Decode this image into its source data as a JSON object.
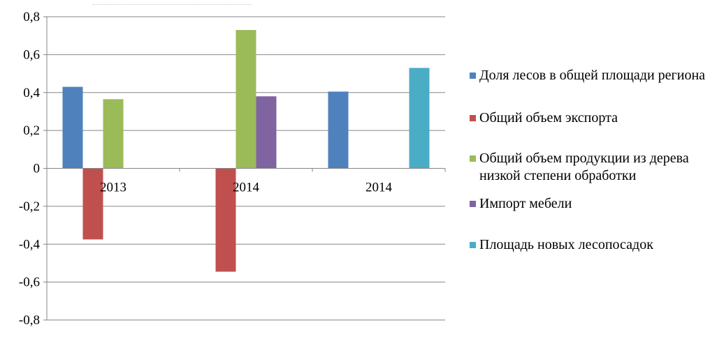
{
  "chart_data": {
    "type": "bar",
    "categories": [
      "2013",
      "2014",
      "2014"
    ],
    "series": [
      {
        "name": "Доля лесов в общей площади региона",
        "color": "#4F81BD",
        "values": [
          0.43,
          null,
          0.405
        ]
      },
      {
        "name": "Общий объем экспорта",
        "color": "#C0504D",
        "values": [
          -0.375,
          -0.545,
          null
        ]
      },
      {
        "name": "Общий объем продукции из дерева низкой степени обработки",
        "color": "#9BBB59",
        "values": [
          0.365,
          0.73,
          null
        ]
      },
      {
        "name": "Импорт мебели",
        "color": "#8064A2",
        "values": [
          null,
          0.38,
          null
        ]
      },
      {
        "name": "Площадь новых лесопосадок",
        "color": "#4BACC6",
        "values": [
          null,
          null,
          0.53
        ]
      }
    ],
    "y_ticks": [
      "0,8",
      "0,6",
      "0,4",
      "0,2",
      "0",
      "-0,2",
      "-0,4",
      "-0,6",
      "-0,8"
    ],
    "ylim": [
      -0.8,
      0.8
    ],
    "grid": true,
    "legend_position": "right"
  },
  "legend": {
    "items": [
      {
        "text": "Доля лесов в общей площади региона",
        "color": "#4F81BD"
      },
      {
        "text": "Общий объем экспорта",
        "color": "#C0504D"
      },
      {
        "text": "Общий объем продукции из дерева низкой степени обработки",
        "color": "#9BBB59"
      },
      {
        "text": "Импорт мебели",
        "color": "#8064A2"
      },
      {
        "text": "Площадь новых лесопосадок",
        "color": "#4BACC6"
      }
    ]
  }
}
